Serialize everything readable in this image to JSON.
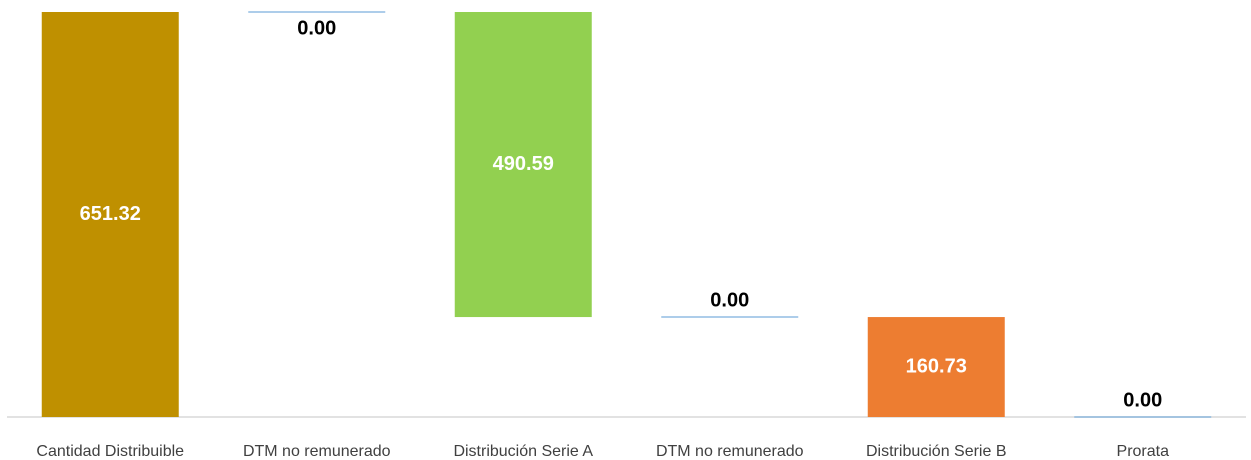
{
  "chart_data": {
    "type": "waterfall",
    "categories": [
      "Cantidad Distribuible",
      "DTM no remunerado",
      "Distribución Serie A",
      "DTM no remunerado",
      "Distribución Serie B",
      "Prorata"
    ],
    "values": [
      651.32,
      0,
      490.59,
      0,
      160.73,
      0
    ],
    "value_labels": [
      "651.32",
      "0.00",
      "490.59",
      "0.00",
      "160.73",
      "0.00"
    ],
    "colors": [
      "#bf9000",
      "#5b9bd5",
      "#92d050",
      "#5b9bd5",
      "#ed7d31",
      "#5b9bd5"
    ]
  }
}
